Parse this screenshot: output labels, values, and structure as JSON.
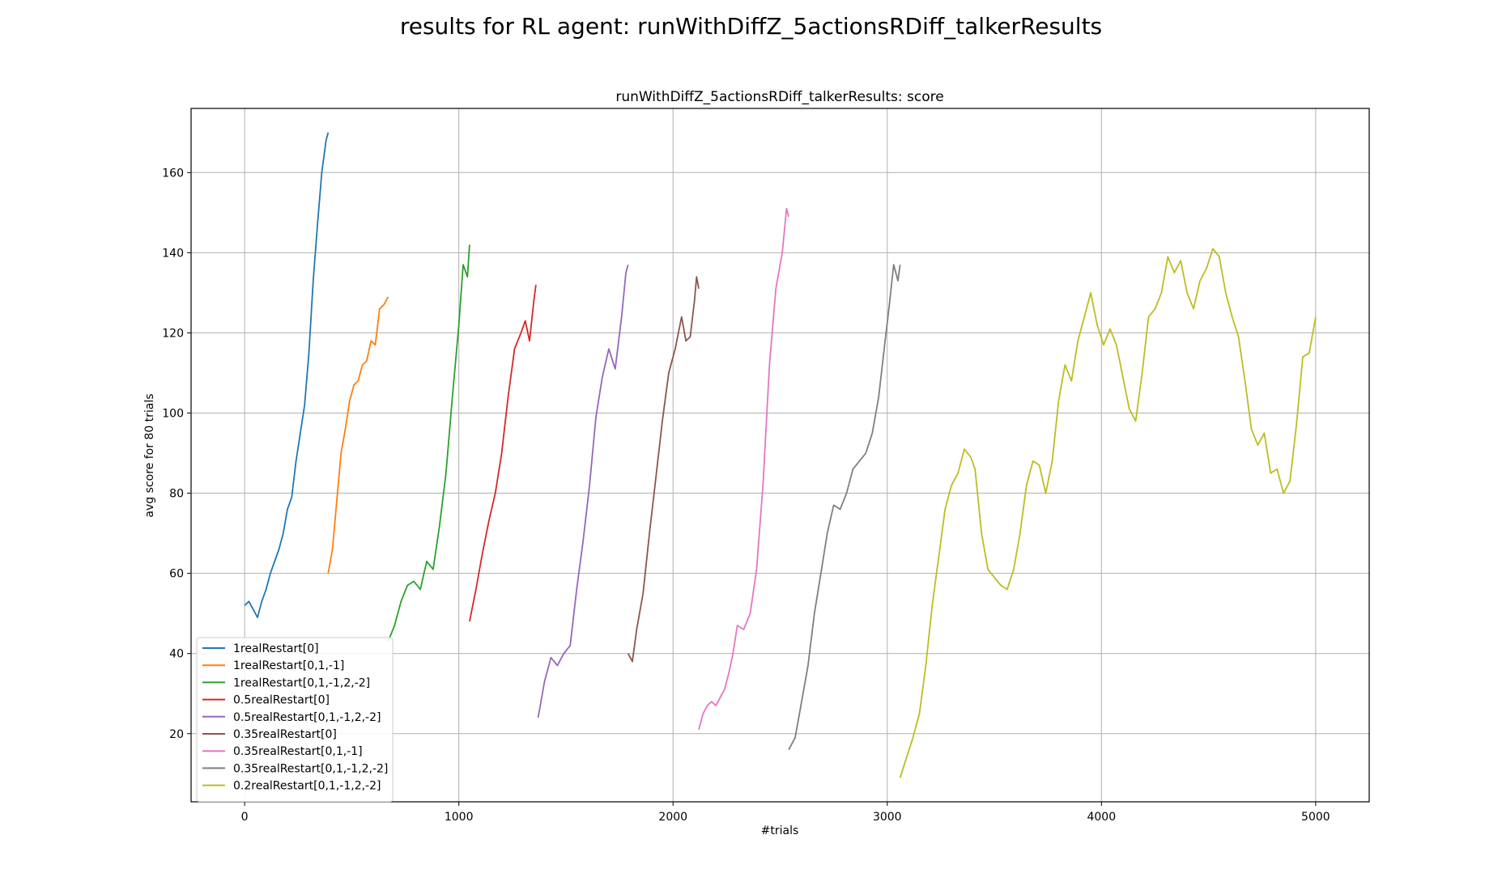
{
  "figure": {
    "suptitle": "results for RL agent: runWithDiffZ_5actionsRDiff_talkerResults"
  },
  "chart_data": {
    "type": "line",
    "title": "runWithDiffZ_5actionsRDiff_talkerResults: score",
    "xlabel": "#trials",
    "ylabel": "avg score for 80 trials",
    "xlim": [
      -250,
      5250
    ],
    "ylim": [
      3,
      176
    ],
    "xticks": [
      0,
      1000,
      2000,
      3000,
      4000,
      5000
    ],
    "yticks": [
      20,
      40,
      60,
      80,
      100,
      120,
      140,
      160
    ],
    "grid": true,
    "legend_position": "lower-left",
    "series": [
      {
        "name": "1realRestart[0]",
        "color": "#1f77b4",
        "x": [
          0,
          20,
          40,
          60,
          80,
          100,
          120,
          140,
          160,
          180,
          200,
          220,
          240,
          260,
          280,
          300,
          320,
          340,
          360,
          380,
          390
        ],
        "y": [
          52,
          53,
          51,
          49,
          53,
          56,
          60,
          63,
          66,
          70,
          76,
          79,
          88,
          95,
          102,
          115,
          133,
          147,
          160,
          168,
          170
        ]
      },
      {
        "name": "1realRestart[0,1,-1]",
        "color": "#ff7f0e",
        "x": [
          390,
          410,
          430,
          450,
          470,
          490,
          510,
          530,
          550,
          570,
          590,
          610,
          630,
          650,
          670
        ],
        "y": [
          60,
          66,
          78,
          90,
          96,
          103,
          107,
          108,
          112,
          113,
          118,
          117,
          126,
          127,
          129
        ]
      },
      {
        "name": "1realRestart[0,1,-1,2,-2]",
        "color": "#2ca02c",
        "x": [
          670,
          700,
          730,
          760,
          790,
          820,
          850,
          880,
          910,
          940,
          970,
          1000,
          1020,
          1040,
          1050
        ],
        "y": [
          43,
          47,
          53,
          57,
          58,
          56,
          63,
          61,
          72,
          85,
          104,
          122,
          137,
          134,
          142
        ]
      },
      {
        "name": "0.5realRestart[0]",
        "color": "#d62728",
        "x": [
          1050,
          1080,
          1110,
          1140,
          1170,
          1200,
          1230,
          1260,
          1290,
          1310,
          1330,
          1350,
          1360
        ],
        "y": [
          48,
          56,
          65,
          73,
          80,
          90,
          104,
          116,
          120,
          123,
          118,
          128,
          132
        ]
      },
      {
        "name": "0.5realRestart[0,1,-1,2,-2]",
        "color": "#9467bd",
        "x": [
          1370,
          1400,
          1430,
          1460,
          1490,
          1520,
          1550,
          1580,
          1610,
          1640,
          1670,
          1700,
          1730,
          1760,
          1780,
          1790
        ],
        "y": [
          24,
          33,
          39,
          37,
          40,
          42,
          56,
          68,
          82,
          99,
          109,
          116,
          111,
          124,
          135,
          137
        ]
      },
      {
        "name": "0.35realRestart[0]",
        "color": "#8c564b",
        "x": [
          1790,
          1810,
          1830,
          1860,
          1890,
          1920,
          1950,
          1980,
          2010,
          2040,
          2060,
          2080,
          2100,
          2110,
          2120
        ],
        "y": [
          40,
          38,
          46,
          55,
          70,
          84,
          98,
          110,
          116,
          124,
          118,
          119,
          128,
          134,
          131
        ]
      },
      {
        "name": "0.35realRestart[0,1,-1]",
        "color": "#e377c2",
        "x": [
          2120,
          2140,
          2160,
          2180,
          2200,
          2220,
          2240,
          2260,
          2280,
          2300,
          2330,
          2360,
          2390,
          2420,
          2450,
          2480,
          2510,
          2530,
          2540
        ],
        "y": [
          21,
          25,
          27,
          28,
          27,
          29,
          31,
          35,
          40,
          47,
          46,
          50,
          61,
          82,
          112,
          131,
          140,
          151,
          149
        ]
      },
      {
        "name": "0.35realRestart[0,1,-1,2,-2]",
        "color": "#7f7f7f",
        "x": [
          2540,
          2570,
          2600,
          2630,
          2660,
          2690,
          2720,
          2750,
          2780,
          2810,
          2840,
          2870,
          2900,
          2930,
          2960,
          2990,
          3010,
          3030,
          3050,
          3060
        ],
        "y": [
          16,
          19,
          28,
          37,
          50,
          60,
          70,
          77,
          76,
          80,
          86,
          88,
          90,
          95,
          104,
          118,
          127,
          137,
          133,
          137
        ]
      },
      {
        "name": "0.2realRestart[0,1,-1,2,-2]",
        "color": "#bcbd22",
        "x": [
          3060,
          3090,
          3120,
          3150,
          3180,
          3210,
          3240,
          3270,
          3300,
          3330,
          3360,
          3390,
          3410,
          3440,
          3470,
          3500,
          3530,
          3560,
          3590,
          3620,
          3650,
          3680,
          3710,
          3740,
          3770,
          3800,
          3830,
          3860,
          3890,
          3920,
          3950,
          3980,
          4010,
          4040,
          4070,
          4100,
          4130,
          4160,
          4190,
          4220,
          4250,
          4280,
          4310,
          4340,
          4370,
          4400,
          4430,
          4460,
          4490,
          4520,
          4550,
          4580,
          4610,
          4640,
          4670,
          4700,
          4730,
          4760,
          4790,
          4820,
          4850,
          4880,
          4910,
          4940,
          4970,
          5000
        ],
        "y": [
          9,
          14,
          19,
          25,
          37,
          52,
          64,
          76,
          82,
          85,
          91,
          89,
          86,
          70,
          61,
          59,
          57,
          56,
          61,
          70,
          82,
          88,
          87,
          80,
          88,
          103,
          112,
          108,
          118,
          124,
          130,
          122,
          117,
          121,
          117,
          109,
          101,
          98,
          110,
          124,
          126,
          130,
          139,
          135,
          138,
          130,
          126,
          133,
          136,
          141,
          139,
          130,
          124,
          119,
          108,
          96,
          92,
          95,
          85,
          86,
          80,
          83,
          97,
          114,
          115,
          124
        ]
      }
    ]
  }
}
